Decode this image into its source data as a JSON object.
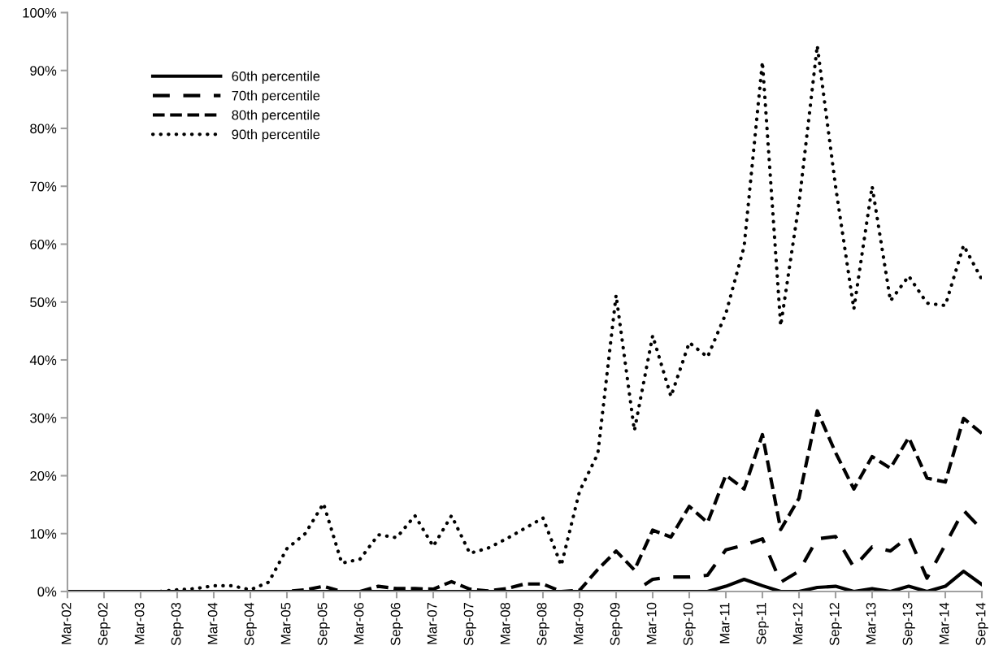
{
  "chart_data": {
    "type": "line",
    "categories": [
      "Mar-02",
      null,
      "Sep-02",
      null,
      "Mar-03",
      null,
      "Sep-03",
      null,
      "Mar-04",
      null,
      "Sep-04",
      null,
      "Mar-05",
      null,
      "Sep-05",
      null,
      "Mar-06",
      null,
      "Sep-06",
      null,
      "Mar-07",
      null,
      "Sep-07",
      null,
      "Mar-08",
      null,
      "Sep-08",
      null,
      "Mar-09",
      null,
      "Sep-09",
      null,
      "Mar-10",
      null,
      "Sep-10",
      null,
      "Mar-11",
      null,
      "Sep-11",
      null,
      "Mar-12",
      null,
      "Sep-12",
      null,
      "Mar-13",
      null,
      "Sep-13",
      null,
      "Mar-14",
      null,
      "Sep-14"
    ],
    "series": [
      {
        "name": "60th percentile",
        "color": "#000000",
        "line_style": "solid",
        "values": [
          0,
          0,
          0,
          0,
          0,
          0,
          0,
          0,
          0,
          0,
          0,
          0,
          0,
          0,
          0,
          0,
          0,
          0,
          0,
          0,
          0,
          0,
          0,
          0,
          0,
          0,
          0,
          0,
          0,
          0,
          0,
          0,
          0,
          0,
          0,
          0,
          0.9,
          2.1,
          1.0,
          0,
          0,
          0.7,
          0.9,
          0,
          0.5,
          0,
          0.9,
          0,
          0.9,
          3.5,
          1.2
        ]
      },
      {
        "name": "70th percentile",
        "color": "#000000",
        "line_style": "longdash",
        "values": [
          0,
          0,
          0,
          0,
          0,
          0,
          0,
          0,
          0,
          0,
          0,
          0,
          0,
          0,
          0,
          0,
          0,
          0,
          0,
          0,
          0,
          0,
          0,
          0,
          0,
          0,
          0,
          0,
          0,
          0,
          0,
          0,
          2.1,
          2.5,
          2.5,
          2.8,
          7.2,
          8.0,
          9.1,
          1.6,
          3.5,
          9.1,
          9.5,
          4.2,
          7.7,
          7.0,
          9.5,
          2.3,
          8.1,
          14.0,
          10.7
        ]
      },
      {
        "name": "80th percentile",
        "color": "#000000",
        "line_style": "dashed",
        "values": [
          0,
          0,
          0,
          0,
          0,
          0,
          0,
          0,
          0,
          0,
          0,
          0,
          0,
          0.3,
          0.9,
          0,
          0,
          0.9,
          0.5,
          0.5,
          0.4,
          1.7,
          0.4,
          0.1,
          0.5,
          1.3,
          1.3,
          0,
          0.2,
          3.8,
          7.0,
          3.7,
          10.6,
          9.4,
          14.7,
          11.9,
          20.1,
          17.7,
          27.1,
          10.7,
          16.1,
          31.2,
          24.0,
          17.7,
          23.3,
          21.3,
          26.6,
          19.6,
          18.9,
          29.9,
          27.3
        ]
      },
      {
        "name": "90th percentile",
        "color": "#000000",
        "line_style": "dotted",
        "values": [
          0,
          0,
          0,
          0,
          0,
          0,
          0.3,
          0.5,
          1.0,
          1.0,
          0.3,
          1.6,
          7.4,
          10.0,
          15.2,
          4.9,
          5.6,
          9.8,
          9.3,
          13.1,
          7.8,
          13.1,
          6.6,
          7.5,
          9.1,
          10.9,
          12.7,
          4.5,
          17.3,
          23.8,
          51.2,
          27.8,
          44.2,
          33.7,
          43.0,
          40.5,
          48.0,
          59.6,
          91.5,
          45.9,
          67.0,
          94.3,
          70.0,
          48.8,
          70.0,
          50.2,
          54.5,
          49.8,
          49.4,
          59.8,
          53.9
        ]
      }
    ],
    "ylim": [
      0,
      100
    ],
    "yticks": [
      {
        "value": 0,
        "label": "0%"
      },
      {
        "value": 10,
        "label": "10%"
      },
      {
        "value": 20,
        "label": "20%"
      },
      {
        "value": 30,
        "label": "30%"
      },
      {
        "value": 40,
        "label": "40%"
      },
      {
        "value": 50,
        "label": "50%"
      },
      {
        "value": 60,
        "label": "60%"
      },
      {
        "value": 70,
        "label": "70%"
      },
      {
        "value": 80,
        "label": "80%"
      },
      {
        "value": 90,
        "label": "90%"
      },
      {
        "value": 100,
        "label": "100%"
      }
    ],
    "grid": false,
    "legend": "top left",
    "marker": "none"
  }
}
